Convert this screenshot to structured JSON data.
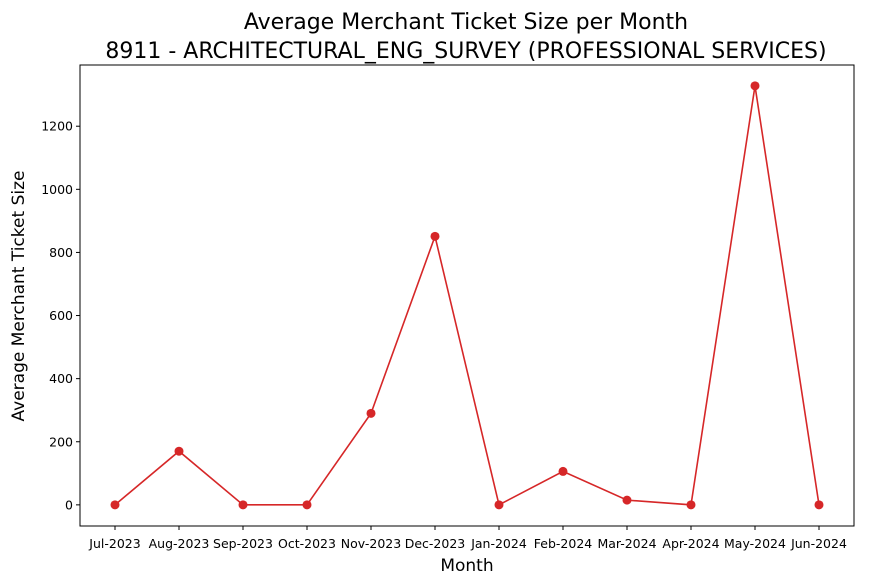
{
  "chart_data": {
    "type": "line",
    "title": "Average Merchant Ticket Size per Month",
    "subtitle": "8911 - ARCHITECTURAL_ENG_SURVEY (PROFESSIONAL SERVICES)",
    "xlabel": "Month",
    "ylabel": "Average Merchant Ticket Size",
    "categories": [
      "Jul-2023",
      "Aug-2023",
      "Sep-2023",
      "Oct-2023",
      "Nov-2023",
      "Dec-2023",
      "Jan-2024",
      "Feb-2024",
      "Mar-2024",
      "Apr-2024",
      "May-2024",
      "Jun-2024"
    ],
    "series": [
      {
        "values": [
          0,
          170,
          0,
          0,
          290,
          851,
          0,
          106,
          15,
          0,
          1328,
          0
        ],
        "color": "#d62728",
        "marker": "circle"
      }
    ],
    "ylim": [
      -67,
      1394
    ],
    "yticks": [
      0,
      200,
      400,
      600,
      800,
      1000,
      1200
    ],
    "grid": false,
    "legend": "none"
  }
}
